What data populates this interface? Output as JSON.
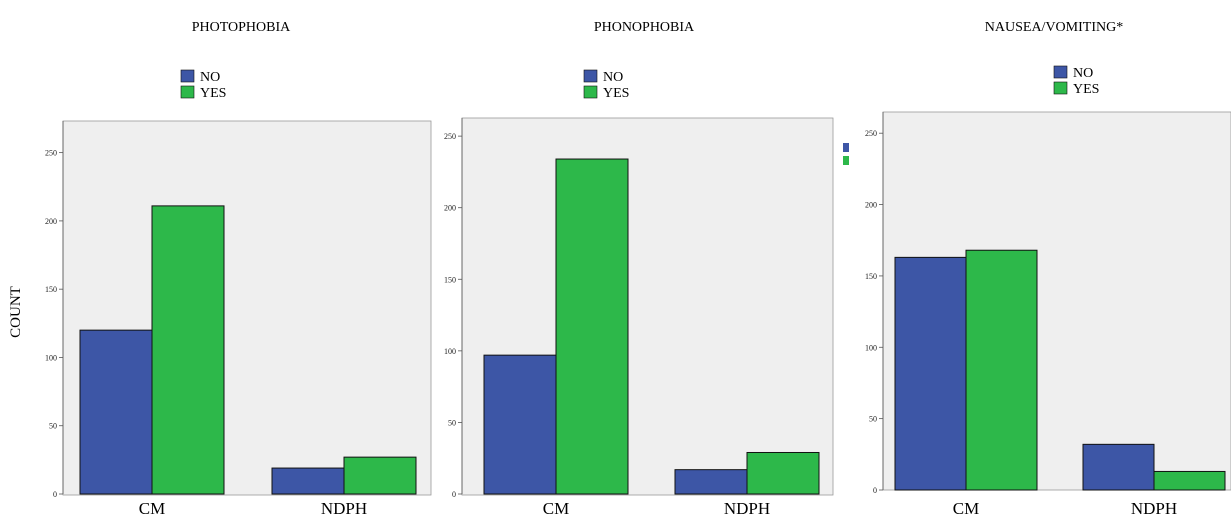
{
  "colors": {
    "no": "#3d56a6",
    "yes": "#2db84a",
    "plot_bg": "#efefef",
    "bar_stroke": "#111111"
  },
  "chart_data": [
    {
      "type": "bar",
      "title": "PHOTOPHOBIA",
      "ylabel": "COUNT",
      "categories": [
        "CM",
        "NDPH"
      ],
      "series": [
        {
          "name": "NO",
          "values": [
            120,
            19
          ]
        },
        {
          "name": "YES",
          "values": [
            211,
            27
          ]
        }
      ],
      "ylim": [
        0,
        260
      ],
      "yticks": [
        0,
        50,
        100,
        150,
        200,
        250
      ],
      "legend": "top-center",
      "grid": false
    },
    {
      "type": "bar",
      "title": "PHONOPHOBIA",
      "ylabel": "",
      "categories": [
        "CM",
        "NDPH"
      ],
      "series": [
        {
          "name": "NO",
          "values": [
            97,
            17
          ]
        },
        {
          "name": "YES",
          "values": [
            234,
            29
          ]
        }
      ],
      "ylim": [
        0,
        260
      ],
      "yticks": [
        0,
        50,
        100,
        150,
        200,
        250
      ],
      "legend": "top-center",
      "grid": false
    },
    {
      "type": "bar",
      "title": "NAUSEA/VOMITING*",
      "ylabel": "",
      "categories": [
        "CM",
        "NDPH"
      ],
      "series": [
        {
          "name": "NO",
          "values": [
            163,
            32
          ]
        },
        {
          "name": "YES",
          "values": [
            168,
            13
          ]
        }
      ],
      "ylim": [
        0,
        260
      ],
      "yticks": [
        0,
        50,
        100,
        150,
        200,
        250
      ],
      "legend": "top-center",
      "grid": false
    }
  ]
}
